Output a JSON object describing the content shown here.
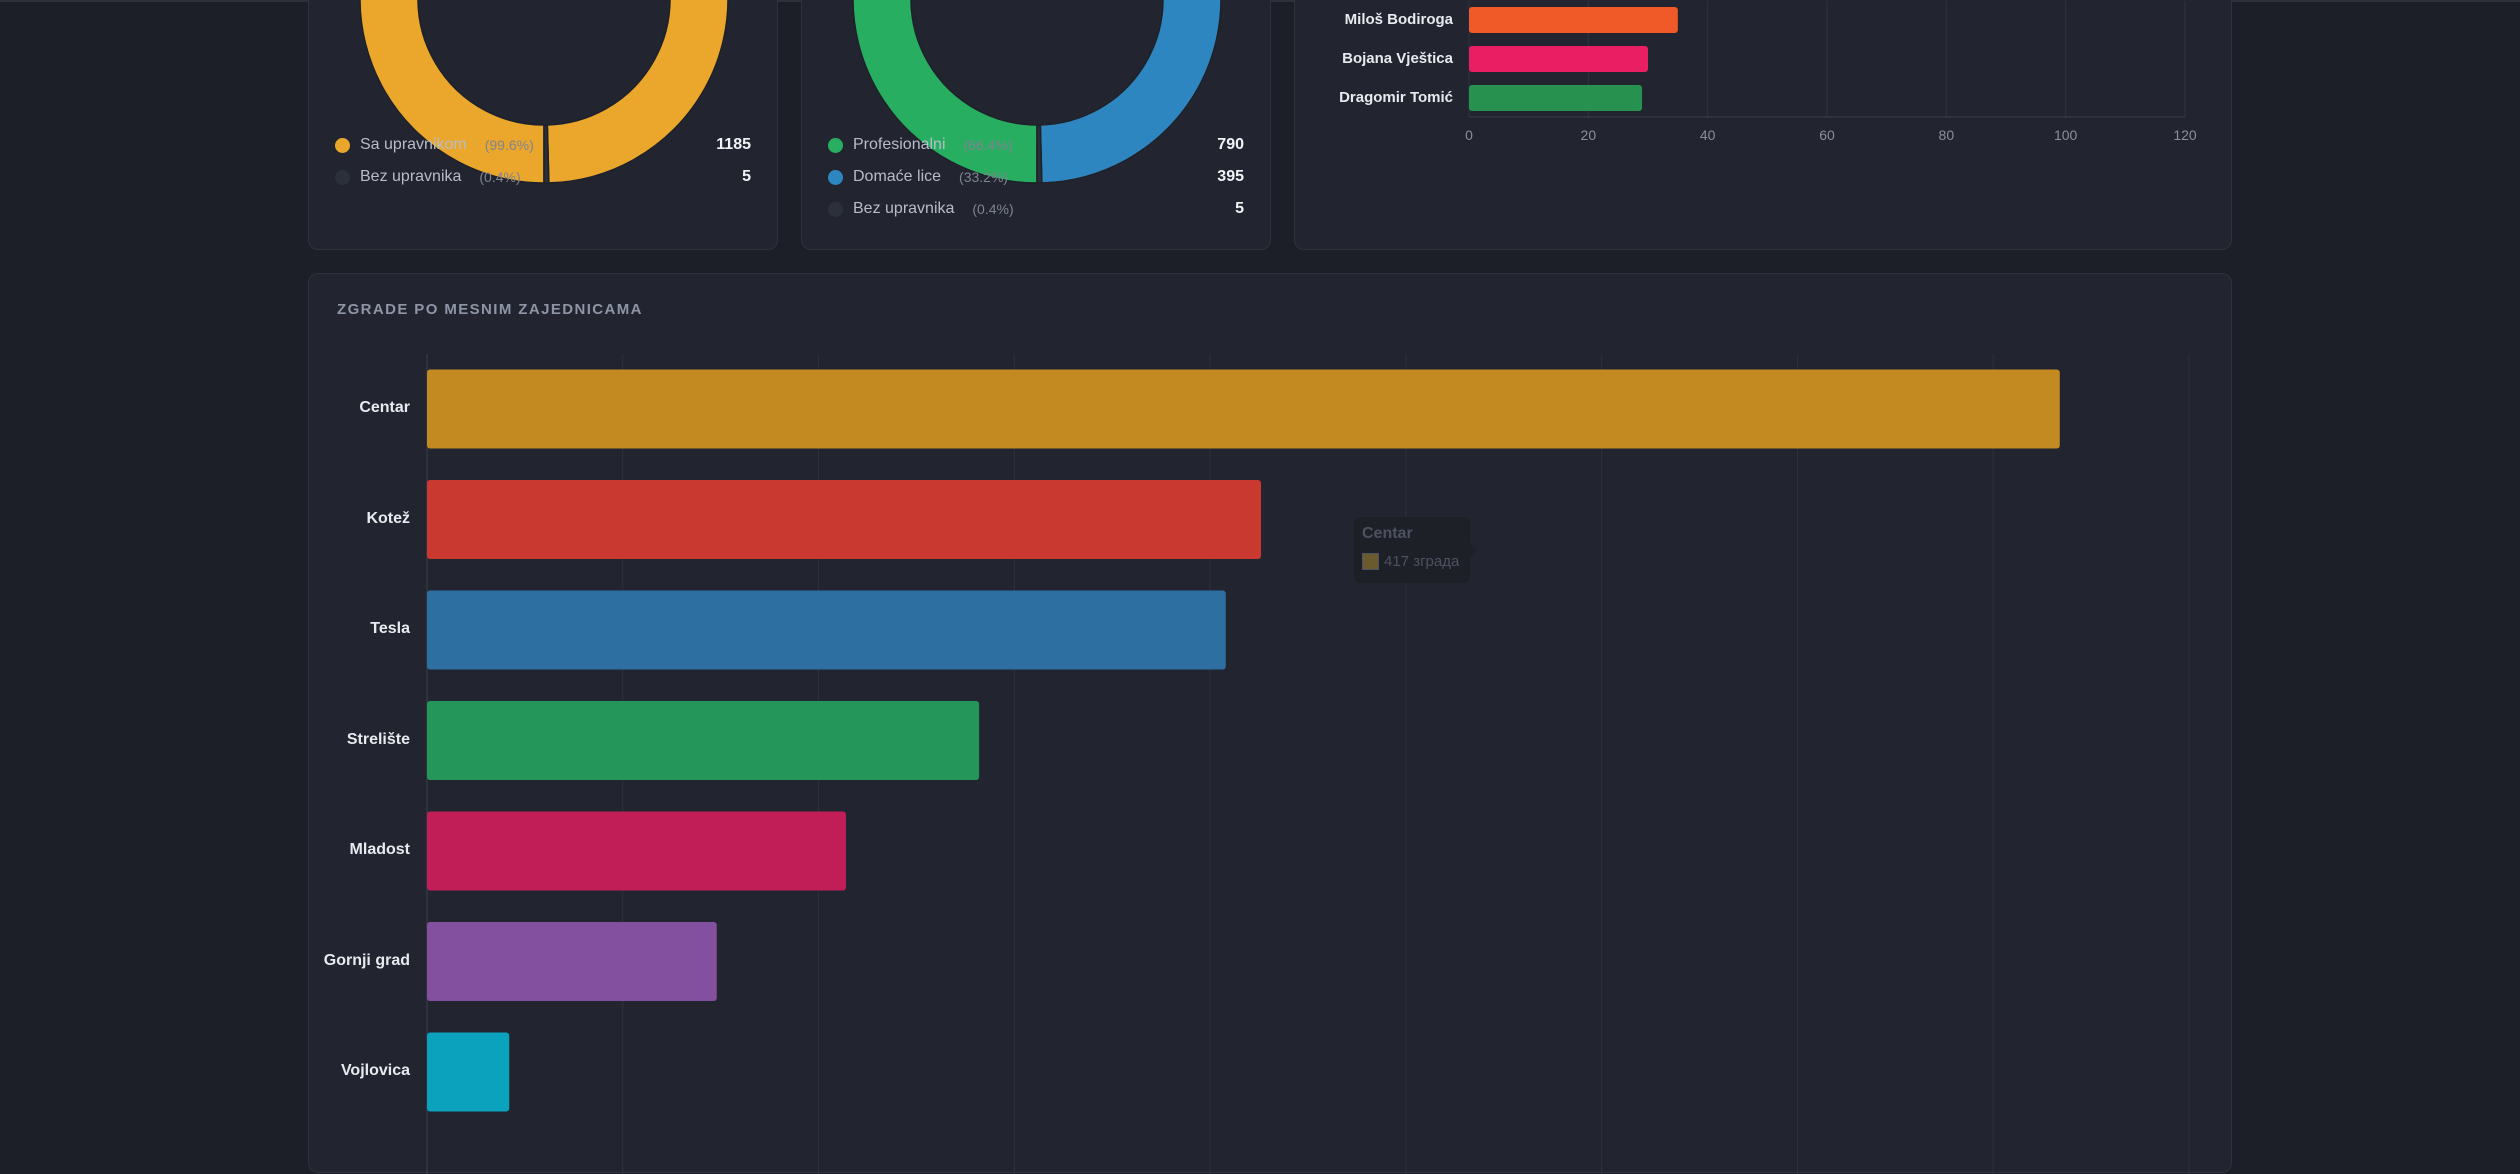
{
  "status_card": {
    "donut": {
      "values": [
        1185,
        5
      ],
      "colors": [
        "#eaa72b",
        "#2a2e38"
      ]
    },
    "legend": [
      {
        "label": "Sa upravnikom",
        "pct": "(99.6%)",
        "value": "1185",
        "color": "#eaa72b"
      },
      {
        "label": "Bez upravnika",
        "pct": "(0.4%)",
        "value": "5",
        "color": "#2c303a"
      }
    ]
  },
  "type_card": {
    "donut": {
      "values": [
        790,
        395,
        5
      ],
      "colors": [
        "#27ae60",
        "#2e86c1",
        "#2a2e38"
      ]
    },
    "legend": [
      {
        "label": "Profesionalni",
        "pct": "(66.4%)",
        "value": "790",
        "color": "#27ae60"
      },
      {
        "label": "Domaće lice",
        "pct": "(33.2%)",
        "value": "395",
        "color": "#2e86c1"
      },
      {
        "label": "Bez upravnika",
        "pct": "(0.4%)",
        "value": "5",
        "color": "#2c303a"
      }
    ]
  },
  "managers_chart": {
    "chart_data": {
      "type": "bar",
      "orientation": "horizontal",
      "categories": [
        "Miloš Bodiroga",
        "Bojana Vještica",
        "Dragomir Tomić"
      ],
      "values": [
        35,
        30,
        29
      ],
      "colors": [
        "#f05a28",
        "#e91e63",
        "#27914f"
      ],
      "xlim": [
        0,
        120
      ],
      "ticks": [
        0,
        20,
        40,
        60,
        80,
        100,
        120
      ],
      "grid": true
    }
  },
  "mz_chart": {
    "title": "ZGRADE PO MESNIM ZAJEDNICAMA",
    "chart_data": {
      "type": "bar",
      "orientation": "horizontal",
      "categories": [
        "Centar",
        "Kotež",
        "Tesla",
        "Strelište",
        "Mladost",
        "Gornji grad",
        "Vojlovica"
      ],
      "values": [
        417,
        213,
        204,
        141,
        107,
        74,
        21
      ],
      "colors": [
        "#c38a22",
        "#c9392f",
        "#2c6fa0",
        "#25965a",
        "#c11d57",
        "#83509f",
        "#0aa2bd"
      ],
      "xlim": [
        0,
        450
      ],
      "grid": true
    },
    "tooltip": {
      "title": "Centar",
      "text": "417 зграда"
    }
  }
}
